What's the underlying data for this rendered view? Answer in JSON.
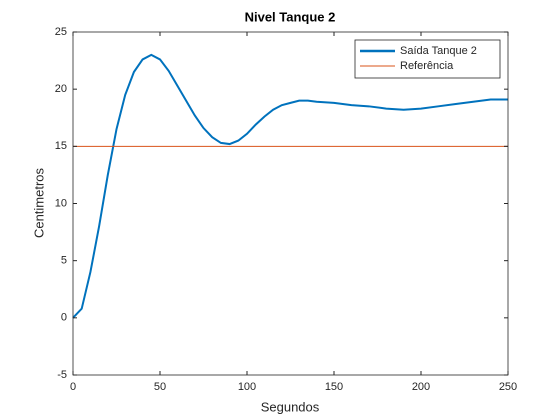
{
  "chart_data": {
    "type": "line",
    "title": "Nivel Tanque 2",
    "xlabel": "Segundos",
    "ylabel": "Centimetros",
    "series": [
      {
        "name": "Saída Tanque 2",
        "color": "#0072BD",
        "x": [
          0,
          5,
          10,
          15,
          20,
          25,
          30,
          35,
          40,
          45,
          50,
          55,
          60,
          65,
          70,
          75,
          80,
          85,
          90,
          95,
          100,
          105,
          110,
          115,
          120,
          125,
          130,
          135,
          140,
          150,
          160,
          170,
          180,
          190,
          200,
          210,
          220,
          230,
          240,
          250
        ],
        "values": [
          0,
          0.8,
          4,
          8,
          12.5,
          16.5,
          19.5,
          21.5,
          22.6,
          23,
          22.6,
          21.6,
          20.3,
          19,
          17.7,
          16.6,
          15.8,
          15.3,
          15.2,
          15.5,
          16.1,
          16.9,
          17.6,
          18.2,
          18.6,
          18.8,
          19,
          19,
          18.9,
          18.8,
          18.6,
          18.5,
          18.3,
          18.2,
          18.3,
          18.5,
          18.7,
          18.9,
          19.1,
          19.1
        ]
      },
      {
        "name": "Referência",
        "color": "#D95319",
        "x": [
          0,
          250
        ],
        "values": [
          15,
          15
        ]
      }
    ],
    "xlim": [
      0,
      250
    ],
    "xticks": [
      0,
      50,
      100,
      150,
      200,
      250
    ],
    "ylim": [
      -5,
      25
    ],
    "yticks": [
      -5,
      0,
      5,
      10,
      15,
      20,
      25
    ],
    "legend": "northeast"
  }
}
